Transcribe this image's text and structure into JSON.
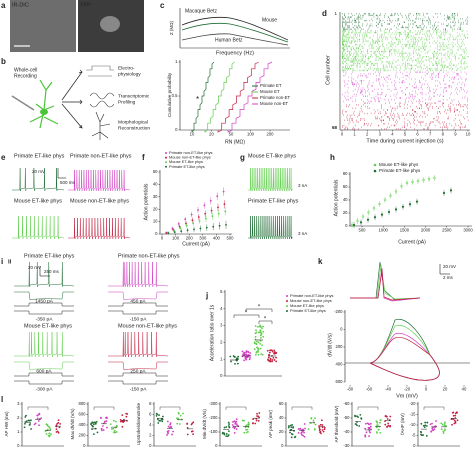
{
  "panels": {
    "a": {
      "label": "a",
      "images": [
        "IR-DIC",
        "YFP"
      ]
    },
    "b": {
      "label": "b",
      "source": [
        "Whole-cell",
        "Recording"
      ],
      "outputs": [
        [
          "Electro-",
          "physiology"
        ],
        [
          "Transcriptomic",
          "Profiling"
        ],
        [
          "Morphological",
          "Reconstruction"
        ]
      ]
    },
    "c": {
      "label": "c",
      "top": {
        "y_label": "Z (MΩ)",
        "x_label": "Frequency (Hz)",
        "curves": [
          "Macaque Betz",
          "Mouse",
          "Human Betz"
        ]
      },
      "bottom": {
        "y_label": "Cumulative probability",
        "x_label": "RN (MΩ)",
        "yticks": [
          "0",
          "0.5",
          "1"
        ],
        "xticks": [
          "10",
          "20",
          "50",
          "100",
          "200"
        ],
        "legend": [
          "Primate ET",
          "Mouse ET",
          "Primate non-ET",
          "Mouse non-ET"
        ],
        "marker": "*"
      }
    },
    "d": {
      "label": "d",
      "y_label": "Cell number",
      "yticks": [
        "1",
        "68"
      ],
      "x_label": "Time during current injection (s)",
      "xticks": [
        "0",
        "1",
        "2",
        "3",
        "4",
        "5",
        "6",
        "7",
        "8",
        "9",
        "10"
      ]
    },
    "e": {
      "label": "e",
      "traces": [
        "Primate ET-like phys",
        "Primate non-ET-like phys",
        "Mouse ET-like phys",
        "Mouse non-ET-like phys"
      ],
      "scale": [
        "20 mV",
        "500 ms"
      ]
    },
    "f": {
      "label": "f",
      "legend": [
        "Primate non-ET-like phys",
        "Mouse non-ET-like phys",
        "Mouse ET-like phys",
        "Primate ET-like phys"
      ],
      "y_label": "Action potentials",
      "yticks": [
        "0",
        "10",
        "20",
        "30",
        "40",
        "50"
      ],
      "x_label": "Current (pA)",
      "xticks": [
        "0",
        "100",
        "200",
        "300",
        "400",
        "500"
      ]
    },
    "g": {
      "label": "g",
      "traces": [
        "Mouse ET-like phys",
        "Primate ET-like phys"
      ],
      "currents": [
        "3 nA",
        "3 nA"
      ]
    },
    "h": {
      "label": "h",
      "legend": [
        "Mouse ET-like phys",
        "Primate ET-like phys"
      ],
      "y_label": "Action potentials",
      "yticks": [
        "0",
        "20",
        "40",
        "60",
        "80"
      ],
      "x_label": "Current (pA)",
      "xticks": [
        "500",
        "1000",
        "1500",
        "2000",
        "2500",
        "3000"
      ]
    },
    "i": {
      "label": "i",
      "sublabel": "ii",
      "scale": [
        "20 mV",
        "250 ms"
      ],
      "traces": [
        {
          "title": "Primate ET-like phys",
          "currents": [
            "1450 pA",
            "-350 pA"
          ]
        },
        {
          "title": "Primate non-ET-like phys",
          "currents": [
            "450 pA",
            "-150 pA"
          ]
        },
        {
          "title": "Mouse ET-like phys",
          "currents": [
            "600 pA",
            "-300 pA"
          ]
        },
        {
          "title": "Mouse non-ET-like phys",
          "currents": [
            "250 pA",
            "-150 pA"
          ]
        }
      ]
    },
    "j": {
      "label": "j",
      "legend": [
        "Primate non-ET-like phys",
        "Mouse non-ET-like phys",
        "Mouse ET-like phys",
        "Primate ET-like phys"
      ],
      "y_label": "Acceleration ratio over 1s",
      "yticks": [
        "0",
        "1",
        "2",
        "3",
        "4",
        "5"
      ],
      "stars": [
        "*",
        "*",
        "*"
      ]
    },
    "k": {
      "label": "k",
      "scale": [
        "20 mV",
        "2 ms"
      ],
      "y_label": "dV/dt (V/s)",
      "yticks": [
        "600",
        "400",
        "200",
        "0",
        "-200"
      ],
      "x_label": "Vm (mV)",
      "xticks": [
        "-80",
        "-60",
        "-40",
        "-20",
        "0",
        "20",
        "40"
      ]
    },
    "l": {
      "label": "l",
      "measures": [
        {
          "label": "AP HW (ms)",
          "yticks": [
            "0",
            "1",
            "2",
            "3"
          ]
        },
        {
          "label": "Max dV/dt (V/s)",
          "yticks": [
            "0",
            "200",
            "400",
            "600",
            "800"
          ]
        },
        {
          "label": "Upstroke/downstroke",
          "yticks": [
            "0",
            "2",
            "4",
            "6",
            "8"
          ]
        },
        {
          "label": "Min dV/dt (V/s)",
          "yticks": [
            "0",
            "-100",
            "-200",
            "-300"
          ]
        },
        {
          "label": "AP peak (mV)",
          "yticks": [
            "0",
            "20",
            "40",
            "60"
          ]
        },
        {
          "label": "AP threshold (mV)",
          "yticks": [
            "-30",
            "-40",
            "-50",
            "-60"
          ]
        },
        {
          "label": "fAHP (mV)",
          "yticks": [
            "0",
            "-5",
            "-10",
            "-15",
            "-20"
          ]
        }
      ]
    }
  }
}
